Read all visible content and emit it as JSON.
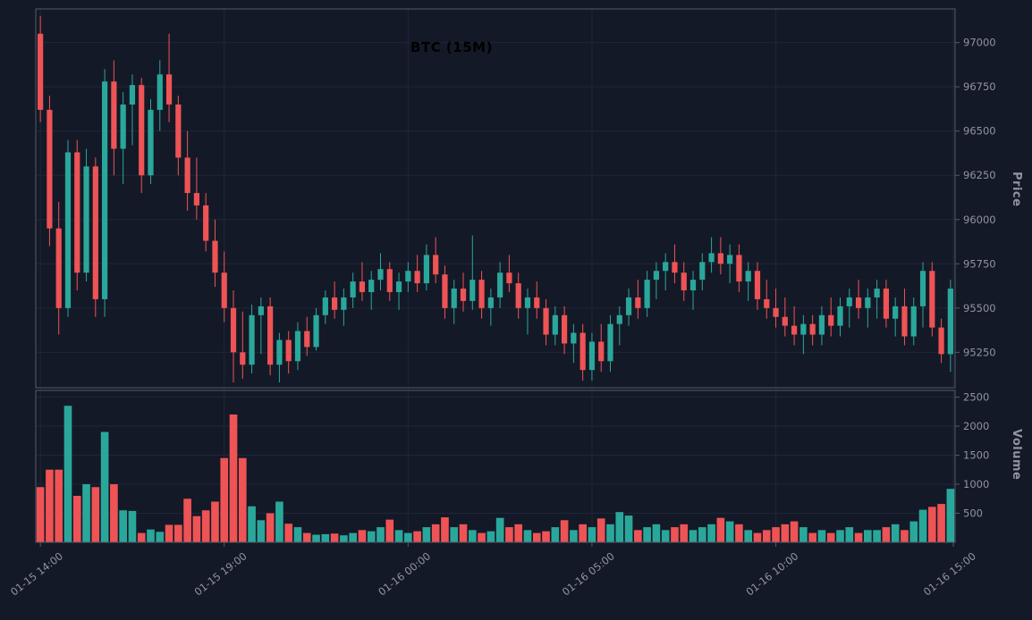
{
  "window": {
    "title": "BTC (15M)"
  },
  "chart_data": {
    "type": "candlestick",
    "title": "BTC (15M)",
    "symbol": "BTC",
    "timeframe": "15M",
    "ylabel": "Price",
    "volume_ylabel": "Volume",
    "legend_position": "none",
    "grid": true,
    "x_ticks": [
      {
        "index": 0,
        "label": "01-15 14:00"
      },
      {
        "index": 20,
        "label": "01-15 19:00"
      },
      {
        "index": 40,
        "label": "01-16 00:00"
      },
      {
        "index": 60,
        "label": "01-16 05:00"
      },
      {
        "index": 80,
        "label": "01-16 10:00"
      },
      {
        "index": 100,
        "label": "01-16 15:00"
      }
    ],
    "price_ticks": [
      97000,
      96750,
      96500,
      96250,
      96000,
      95750,
      95500,
      95250
    ],
    "price_range": [
      95050,
      97190
    ],
    "volume_ticks": [
      2500,
      2000,
      1500,
      1000,
      500
    ],
    "volume_range": [
      0,
      2615
    ],
    "colors": {
      "background": "#141927",
      "up": "#2aa79b",
      "down": "#ee5355",
      "grid": "#1e2738",
      "spine": "#545a6a",
      "tick_text": "#9094a2",
      "title_text": "#000000"
    },
    "candles": {
      "columns": [
        "open",
        "high",
        "low",
        "close",
        "volume"
      ],
      "rows": [
        [
          97050,
          97150,
          96550,
          96620,
          950
        ],
        [
          96620,
          96700,
          95850,
          95950,
          1250
        ],
        [
          95950,
          96100,
          95350,
          95500,
          1250
        ],
        [
          95500,
          96450,
          95450,
          96380,
          2350
        ],
        [
          96380,
          96450,
          95600,
          95700,
          800
        ],
        [
          95700,
          96400,
          95650,
          96300,
          1000
        ],
        [
          96300,
          96350,
          95450,
          95550,
          950
        ],
        [
          95550,
          96850,
          95450,
          96780,
          1900
        ],
        [
          96780,
          96900,
          96250,
          96400,
          1000
        ],
        [
          96400,
          96720,
          96200,
          96650,
          550
        ],
        [
          96650,
          96820,
          96420,
          96760,
          540
        ],
        [
          96760,
          96800,
          96150,
          96250,
          160
        ],
        [
          96250,
          96680,
          96200,
          96620,
          220
        ],
        [
          96620,
          96900,
          96500,
          96820,
          180
        ],
        [
          96820,
          97050,
          96550,
          96650,
          300
        ],
        [
          96650,
          96700,
          96250,
          96350,
          300
        ],
        [
          96350,
          96500,
          96050,
          96150,
          750
        ],
        [
          96150,
          96350,
          96000,
          96080,
          450
        ],
        [
          96080,
          96150,
          95820,
          95880,
          550
        ],
        [
          95880,
          96000,
          95620,
          95700,
          700
        ],
        [
          95700,
          95820,
          95420,
          95500,
          1450
        ],
        [
          95500,
          95600,
          95080,
          95250,
          2200
        ],
        [
          95250,
          95480,
          95100,
          95180,
          1450
        ],
        [
          95180,
          95520,
          95130,
          95460,
          620
        ],
        [
          95460,
          95560,
          95240,
          95510,
          380
        ],
        [
          95510,
          95560,
          95120,
          95180,
          500
        ],
        [
          95180,
          95360,
          95080,
          95320,
          700
        ],
        [
          95320,
          95370,
          95130,
          95200,
          320
        ],
        [
          95200,
          95420,
          95150,
          95370,
          260
        ],
        [
          95370,
          95450,
          95230,
          95280,
          160
        ],
        [
          95280,
          95500,
          95260,
          95460,
          130
        ],
        [
          95460,
          95600,
          95410,
          95560,
          140
        ],
        [
          95560,
          95650,
          95440,
          95490,
          150
        ],
        [
          95490,
          95610,
          95400,
          95560,
          120
        ],
        [
          95560,
          95700,
          95500,
          95650,
          160
        ],
        [
          95650,
          95760,
          95540,
          95590,
          210
        ],
        [
          95590,
          95710,
          95490,
          95660,
          190
        ],
        [
          95660,
          95810,
          95600,
          95720,
          260
        ],
        [
          95720,
          95760,
          95540,
          95590,
          390
        ],
        [
          95590,
          95700,
          95490,
          95650,
          210
        ],
        [
          95650,
          95760,
          95590,
          95710,
          160
        ],
        [
          95710,
          95800,
          95590,
          95640,
          190
        ],
        [
          95640,
          95860,
          95600,
          95800,
          260
        ],
        [
          95800,
          95900,
          95640,
          95690,
          310
        ],
        [
          95690,
          95740,
          95440,
          95500,
          430
        ],
        [
          95500,
          95660,
          95410,
          95610,
          260
        ],
        [
          95610,
          95700,
          95480,
          95540,
          310
        ],
        [
          95540,
          95910,
          95490,
          95660,
          210
        ],
        [
          95660,
          95710,
          95440,
          95500,
          160
        ],
        [
          95500,
          95610,
          95400,
          95560,
          190
        ],
        [
          95560,
          95760,
          95500,
          95700,
          420
        ],
        [
          95700,
          95800,
          95590,
          95640,
          260
        ],
        [
          95640,
          95700,
          95440,
          95500,
          310
        ],
        [
          95500,
          95610,
          95350,
          95560,
          210
        ],
        [
          95560,
          95650,
          95440,
          95500,
          160
        ],
        [
          95500,
          95550,
          95290,
          95350,
          190
        ],
        [
          95350,
          95510,
          95290,
          95460,
          260
        ],
        [
          95460,
          95510,
          95240,
          95300,
          380
        ],
        [
          95300,
          95410,
          95190,
          95360,
          210
        ],
        [
          95360,
          95410,
          95090,
          95150,
          310
        ],
        [
          95150,
          95360,
          95090,
          95310,
          260
        ],
        [
          95310,
          95410,
          95140,
          95200,
          410
        ],
        [
          95200,
          95460,
          95140,
          95410,
          310
        ],
        [
          95410,
          95510,
          95290,
          95460,
          520
        ],
        [
          95460,
          95610,
          95400,
          95560,
          460
        ],
        [
          95560,
          95660,
          95440,
          95500,
          210
        ],
        [
          95500,
          95710,
          95450,
          95660,
          260
        ],
        [
          95660,
          95760,
          95550,
          95710,
          310
        ],
        [
          95710,
          95810,
          95600,
          95760,
          210
        ],
        [
          95760,
          95860,
          95640,
          95700,
          260
        ],
        [
          95700,
          95760,
          95540,
          95600,
          310
        ],
        [
          95600,
          95710,
          95490,
          95660,
          210
        ],
        [
          95660,
          95810,
          95600,
          95760,
          260
        ],
        [
          95760,
          95900,
          95700,
          95810,
          310
        ],
        [
          95810,
          95900,
          95690,
          95750,
          420
        ],
        [
          95750,
          95860,
          95640,
          95800,
          360
        ],
        [
          95800,
          95860,
          95590,
          95650,
          310
        ],
        [
          95650,
          95760,
          95540,
          95710,
          210
        ],
        [
          95710,
          95760,
          95490,
          95550,
          160
        ],
        [
          95550,
          95660,
          95440,
          95500,
          210
        ],
        [
          95500,
          95610,
          95390,
          95450,
          260
        ],
        [
          95450,
          95560,
          95340,
          95400,
          310
        ],
        [
          95400,
          95510,
          95290,
          95350,
          360
        ],
        [
          95350,
          95460,
          95240,
          95410,
          260
        ],
        [
          95410,
          95460,
          95290,
          95350,
          160
        ],
        [
          95350,
          95510,
          95290,
          95460,
          210
        ],
        [
          95460,
          95560,
          95340,
          95400,
          160
        ],
        [
          95400,
          95560,
          95340,
          95510,
          210
        ],
        [
          95510,
          95610,
          95390,
          95560,
          260
        ],
        [
          95560,
          95660,
          95440,
          95500,
          160
        ],
        [
          95500,
          95610,
          95390,
          95560,
          210
        ],
        [
          95560,
          95660,
          95440,
          95610,
          210
        ],
        [
          95610,
          95660,
          95390,
          95440,
          260
        ],
        [
          95440,
          95560,
          95340,
          95510,
          310
        ],
        [
          95510,
          95610,
          95290,
          95340,
          210
        ],
        [
          95340,
          95560,
          95290,
          95510,
          360
        ],
        [
          95510,
          95760,
          95390,
          95710,
          560
        ],
        [
          95710,
          95760,
          95340,
          95390,
          610
        ],
        [
          95390,
          95440,
          95190,
          95240,
          660
        ],
        [
          95240,
          95660,
          95140,
          95610,
          920
        ]
      ]
    }
  }
}
